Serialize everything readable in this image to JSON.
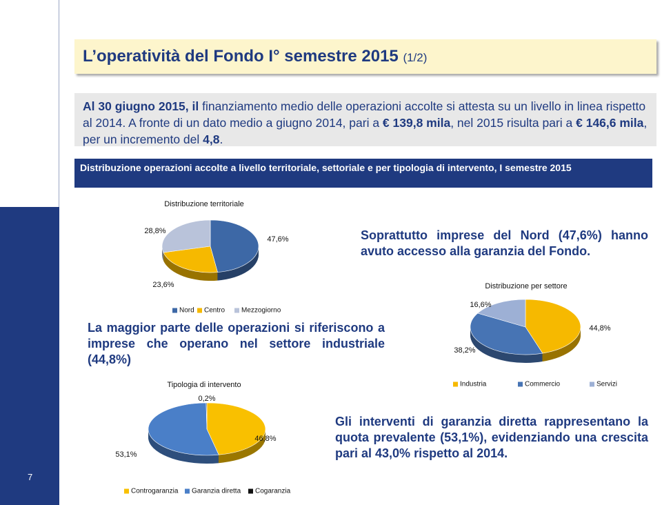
{
  "header": {
    "title": "L’operatività del Fondo I°  semestre 2015",
    "subtitle": "(1/2)"
  },
  "intro": [
    {
      "text": "Al 30 giugno 2015, il",
      "bold": true
    },
    {
      "text": " finanziamento medio delle operazioni accolte si attesta su un livello in linea rispetto al 2014. A fronte di un dato medio a giugno 2014, pari a ",
      "bold": false
    },
    {
      "text": "€ 139,8 mila",
      "bold": true
    },
    {
      "text": ", nel 2015 risulta pari a ",
      "bold": false
    },
    {
      "text": "€ 146,6 mila",
      "bold": true
    },
    {
      "text": ", per un incremento del ",
      "bold": false
    },
    {
      "text": "4,8",
      "bold": true
    },
    {
      "text": ".",
      "bold": false
    }
  ],
  "section_title": "Distribuzione operazioni accolte a livello territoriale, settoriale e per tipologia di intervento, I semestre 2015",
  "chart_data": [
    {
      "type": "pie",
      "title": "Distribuzione territoriale",
      "categories": [
        "Nord",
        "Centro",
        "Mezzogiorno"
      ],
      "values": [
        47.6,
        23.6,
        28.8
      ],
      "value_labels": [
        "47,6%",
        "23,6%",
        "28,8%"
      ],
      "colors": [
        "#3d68a6",
        "#f6b900",
        "#b9c3da"
      ]
    },
    {
      "type": "pie",
      "title": "Distribuzione per settore",
      "categories": [
        "Industria",
        "Commercio",
        "Servizi"
      ],
      "values": [
        44.8,
        38.2,
        16.6
      ],
      "value_labels": [
        "44,8%",
        "38,2%",
        "16,6%"
      ],
      "colors": [
        "#f6b900",
        "#4774b4",
        "#9db0d5"
      ]
    },
    {
      "type": "pie",
      "title": "Tipologia di intervento",
      "categories": [
        "Controgaranzia",
        "Garanzia diretta",
        "Cogaranzia"
      ],
      "values": [
        46.8,
        53.1,
        0.2
      ],
      "value_labels": [
        "46,8%",
        "53,1%",
        "0,2%"
      ],
      "colors": [
        "#f9c000",
        "#4a7fc8",
        "#111111"
      ]
    }
  ],
  "notes": [
    "Soprattutto imprese del Nord (47,6%) hanno avuto accesso alla garanzia del Fondo.",
    "La maggior parte delle operazioni si riferiscono a imprese che operano nel settore industriale (44,8%)",
    "Gli interventi di garanzia diretta rappresentano la quota prevalente (53,1%), evidenziando una crescita pari al 43,0% rispetto al 2014."
  ],
  "page_number": "7"
}
